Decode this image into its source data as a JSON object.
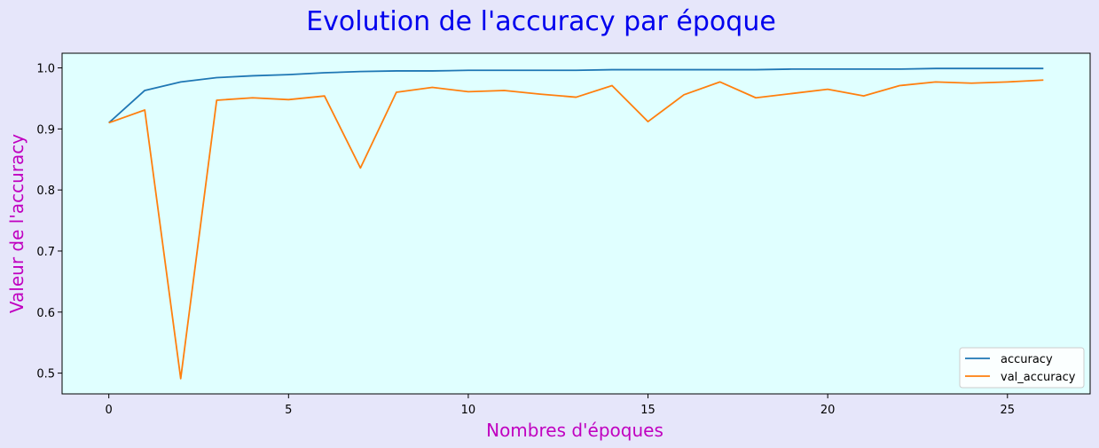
{
  "chart_data": {
    "type": "line",
    "title": "Evolution de l'accuracy par époque",
    "xlabel": "Nombres d'époques",
    "ylabel": "Valeur de l'accuracy",
    "x": [
      0,
      1,
      2,
      3,
      4,
      5,
      6,
      7,
      8,
      9,
      10,
      11,
      12,
      13,
      14,
      15,
      16,
      17,
      18,
      19,
      20,
      21,
      22,
      23,
      24,
      25,
      26
    ],
    "xlim": [
      -1.3,
      27.3
    ],
    "ylim": [
      0.466,
      1.024
    ],
    "xticks": [
      0,
      5,
      10,
      15,
      20,
      25
    ],
    "yticks": [
      0.5,
      0.6,
      0.7,
      0.8,
      0.9,
      1.0
    ],
    "xtick_labels": [
      "0",
      "5",
      "10",
      "15",
      "20",
      "25"
    ],
    "ytick_labels": [
      "0.5",
      "0.6",
      "0.7",
      "0.8",
      "0.9",
      "1.0"
    ],
    "grid": false,
    "legend_position": "lower-right",
    "series": [
      {
        "name": "accuracy",
        "color": "#1f77b4",
        "values": [
          0.91,
          0.963,
          0.977,
          0.984,
          0.987,
          0.989,
          0.992,
          0.994,
          0.995,
          0.995,
          0.996,
          0.996,
          0.996,
          0.996,
          0.997,
          0.997,
          0.997,
          0.997,
          0.997,
          0.998,
          0.998,
          0.998,
          0.998,
          0.999,
          0.999,
          0.999,
          0.999
        ]
      },
      {
        "name": "val_accuracy",
        "color": "#ff7f0e",
        "values": [
          0.91,
          0.931,
          0.491,
          0.947,
          0.951,
          0.948,
          0.954,
          0.836,
          0.96,
          0.968,
          0.961,
          0.963,
          0.957,
          0.952,
          0.971,
          0.912,
          0.956,
          0.977,
          0.951,
          0.958,
          0.965,
          0.954,
          0.971,
          0.977,
          0.975,
          0.977,
          0.98
        ]
      }
    ]
  },
  "colors": {
    "figure_background": "#e6e6fa",
    "plot_background": "#e0ffff",
    "title_color": "#0000ee",
    "label_color": "#c000c0"
  }
}
